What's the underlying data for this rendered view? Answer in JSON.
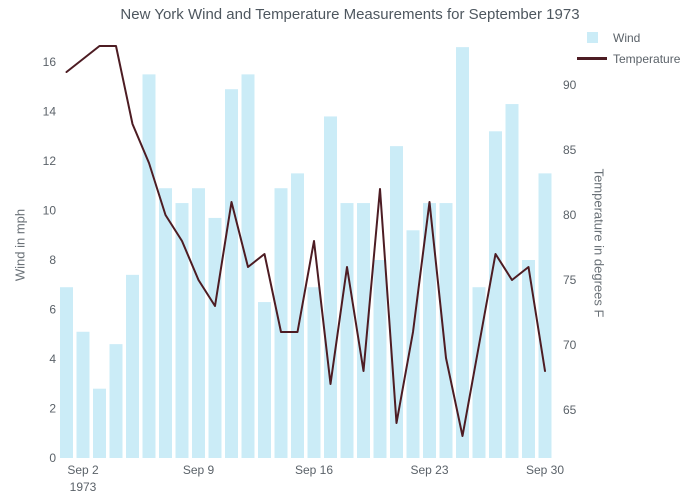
{
  "title": "New York Wind and Temperature Measurements for September 1973",
  "legend": {
    "wind": "Wind",
    "temperature": "Temperature"
  },
  "colors": {
    "bar": "#cbecf7",
    "line": "#4d1c23",
    "tick_text": "#5b6269",
    "title_text": "#4e575f",
    "axis_title_text": "#6a7177",
    "background": "#ffffff"
  },
  "chart_data": {
    "type": "bar",
    "combo": "bar+line",
    "title": "New York Wind and Temperature Measurements for September 1973",
    "x": [
      1,
      2,
      3,
      4,
      5,
      6,
      7,
      8,
      9,
      10,
      11,
      12,
      13,
      14,
      15,
      16,
      17,
      18,
      19,
      20,
      21,
      22,
      23,
      24,
      25,
      26,
      27,
      28,
      29,
      30
    ],
    "series": [
      {
        "name": "Wind",
        "type": "bar",
        "axis": "left",
        "color": "#cbecf7",
        "values": [
          6.9,
          5.1,
          2.8,
          4.6,
          7.4,
          15.5,
          10.9,
          10.3,
          10.9,
          9.7,
          14.9,
          15.5,
          6.3,
          10.9,
          11.5,
          6.9,
          13.8,
          10.3,
          10.3,
          8,
          12.6,
          9.2,
          10.3,
          10.3,
          16.6,
          6.9,
          13.2,
          14.3,
          8,
          11.5
        ]
      },
      {
        "name": "Temperature",
        "type": "line",
        "axis": "right",
        "color": "#4d1c23",
        "values": [
          91,
          92,
          93,
          93,
          87,
          84,
          80,
          78,
          75,
          73,
          81,
          76,
          77,
          71,
          71,
          78,
          67,
          76,
          68,
          82,
          64,
          71,
          81,
          69,
          63,
          70,
          77,
          75,
          76,
          68
        ]
      }
    ],
    "left_axis": {
      "title": "Wind in mph",
      "ticks": [
        0,
        2,
        4,
        6,
        8,
        10,
        12,
        14,
        16
      ],
      "range": [
        0,
        16.9
      ]
    },
    "right_axis": {
      "title": "Temperature in degrees F",
      "ticks": [
        65,
        70,
        75,
        80,
        85,
        90
      ],
      "range": [
        61.3,
        93.5
      ]
    },
    "x_axis": {
      "ticks": [
        {
          "day": 2,
          "label": "Sep 2",
          "sub": "1973"
        },
        {
          "day": 9,
          "label": "Sep 9",
          "sub": ""
        },
        {
          "day": 16,
          "label": "Sep 16",
          "sub": ""
        },
        {
          "day": 23,
          "label": "Sep 23",
          "sub": ""
        },
        {
          "day": 30,
          "label": "Sep 30",
          "sub": ""
        }
      ]
    },
    "grid": false,
    "legend_position": "top-right"
  }
}
